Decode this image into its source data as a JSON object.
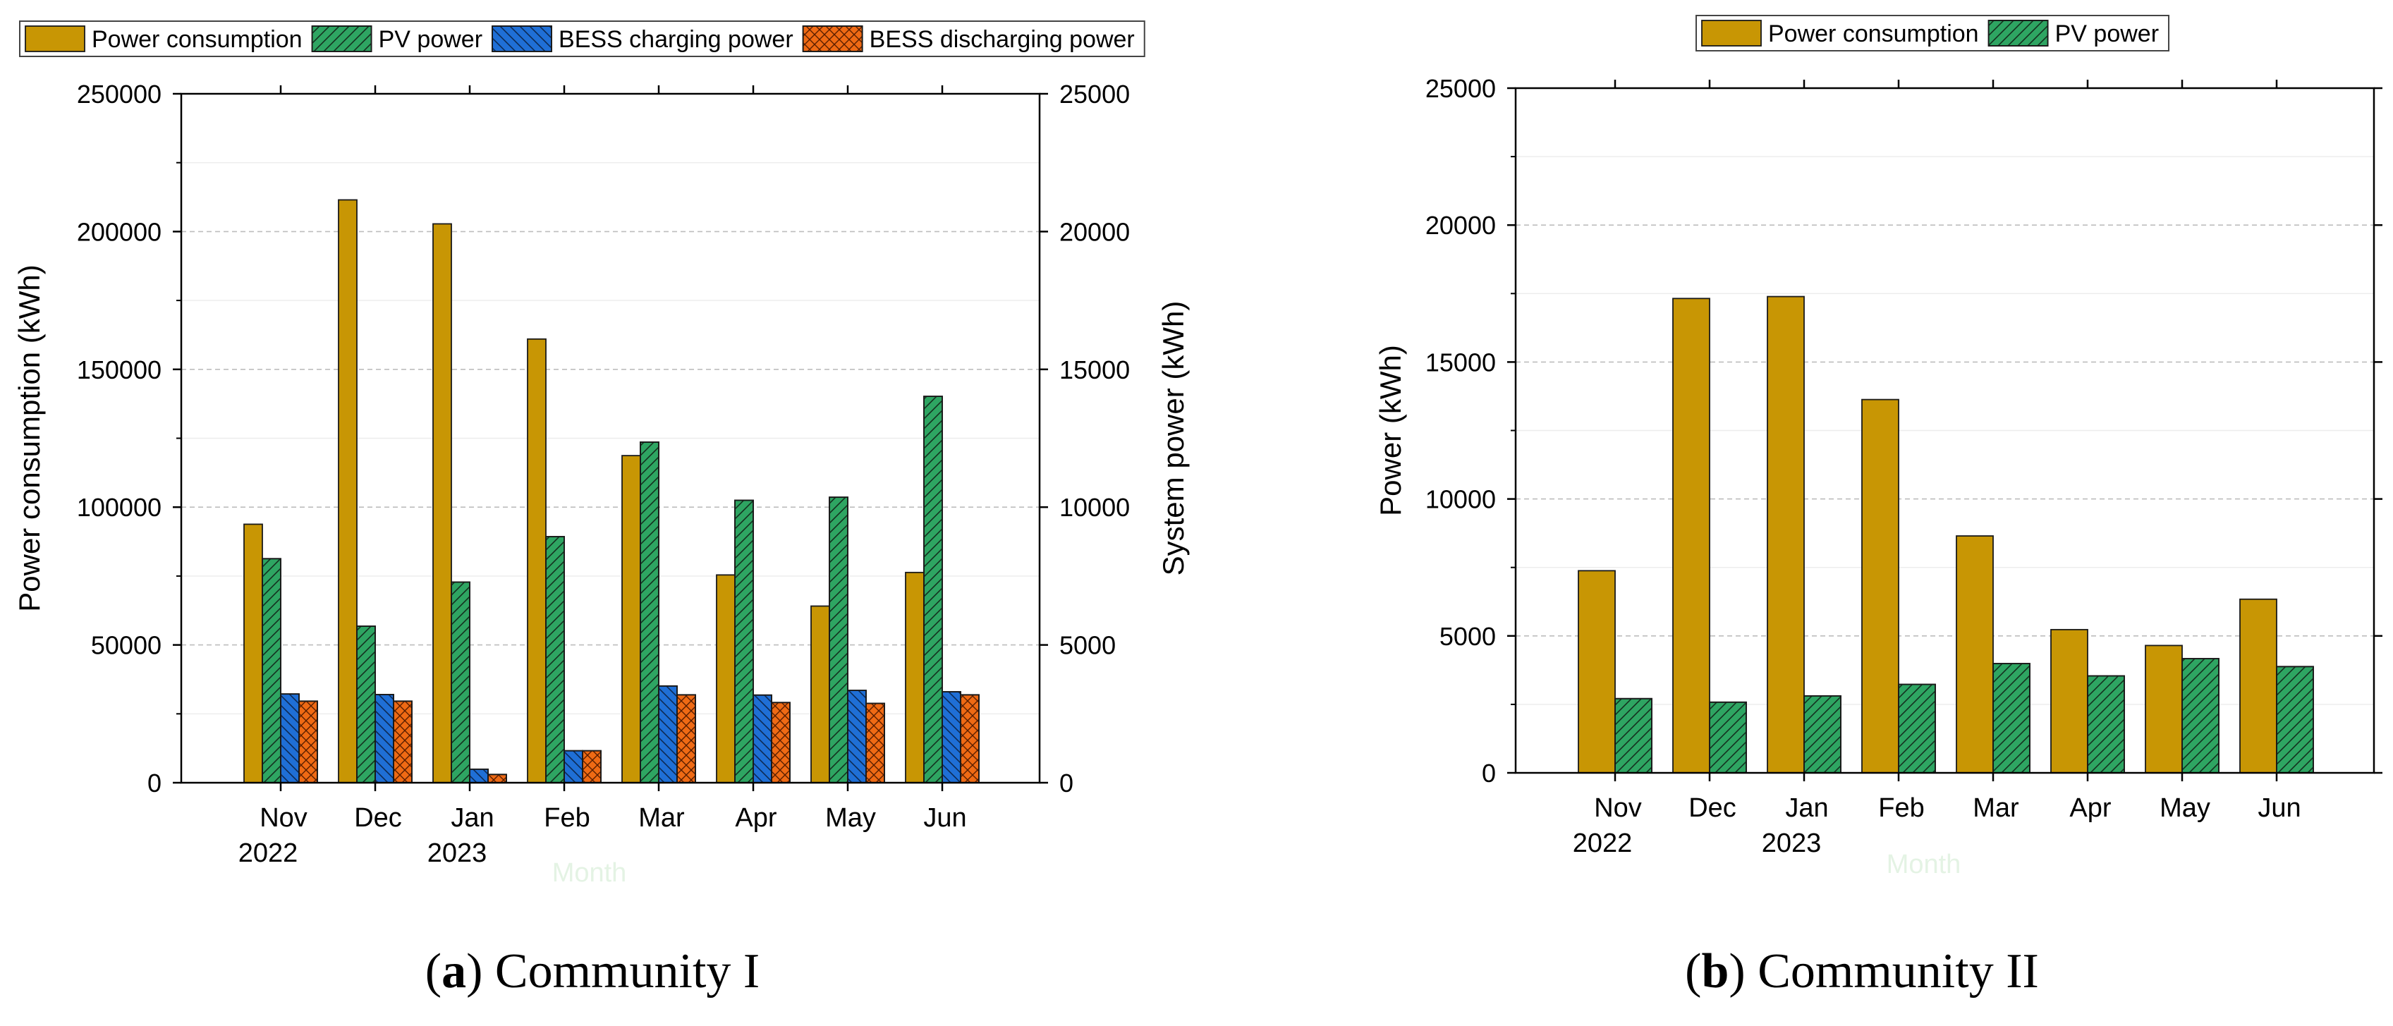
{
  "colors": {
    "power_consumption": "#c89604",
    "pv_power": "#2ea562",
    "bess_charging": "#1f6fd6",
    "bess_discharging": "#ef6a14",
    "grid": "#c8c8c8",
    "axis": "#000000"
  },
  "chart_data": [
    {
      "id": "a",
      "type": "bar",
      "caption_letter": "a",
      "caption_text": " Community I",
      "categories": [
        "Nov",
        "Dec",
        "Jan",
        "Feb",
        "Mar",
        "Apr",
        "May",
        "Jun"
      ],
      "year_labels": {
        "0": "2022",
        "2": "2023"
      },
      "xlabel": "Month",
      "ylabel": "Power consumption (kWh)",
      "ylabel_right": "System power (kWh)",
      "ylim": [
        0,
        250000
      ],
      "ylim_right": [
        0,
        25000
      ],
      "yticks": [
        0,
        50000,
        100000,
        150000,
        200000,
        250000
      ],
      "yticks_right": [
        0,
        5000,
        10000,
        15000,
        20000,
        25000
      ],
      "grid": true,
      "legend_position": "top",
      "series": [
        {
          "name": "Power consumption",
          "key": "power_consumption",
          "axis": "left",
          "pattern": "solid",
          "values": [
            93800,
            211500,
            202800,
            161000,
            118700,
            75400,
            64100,
            76300
          ]
        },
        {
          "name": "PV power",
          "key": "pv_power",
          "axis": "right",
          "pattern": "diag",
          "values": [
            8130,
            5680,
            7280,
            8930,
            12360,
            10250,
            10360,
            14020
          ]
        },
        {
          "name": "BESS charging power",
          "key": "bess_charging",
          "axis": "right",
          "pattern": "backdiag",
          "values": [
            3220,
            3200,
            490,
            1160,
            3510,
            3180,
            3350,
            3300
          ]
        },
        {
          "name": "BESS discharging power",
          "key": "bess_discharging",
          "axis": "right",
          "pattern": "cross",
          "values": [
            2960,
            2960,
            300,
            1160,
            3190,
            2910,
            2880,
            3190
          ]
        }
      ]
    },
    {
      "id": "b",
      "type": "bar",
      "caption_letter": "b",
      "caption_text": " Community II",
      "categories": [
        "Nov",
        "Dec",
        "Jan",
        "Feb",
        "Mar",
        "Apr",
        "May",
        "Jun"
      ],
      "year_labels": {
        "0": "2022",
        "2": "2023"
      },
      "xlabel": "Month",
      "ylabel": "Power (kWh)",
      "ylim": [
        0,
        25000
      ],
      "yticks": [
        0,
        5000,
        10000,
        15000,
        20000,
        25000
      ],
      "grid": true,
      "legend_position": "top",
      "series": [
        {
          "name": "Power consumption",
          "key": "power_consumption",
          "axis": "left",
          "pattern": "solid",
          "values": [
            7380,
            17320,
            17390,
            13630,
            8650,
            5230,
            4650,
            6340
          ]
        },
        {
          "name": "PV power",
          "key": "pv_power",
          "axis": "left",
          "pattern": "diag",
          "values": [
            2710,
            2580,
            2810,
            3230,
            3990,
            3540,
            4170,
            3880
          ]
        }
      ]
    }
  ]
}
